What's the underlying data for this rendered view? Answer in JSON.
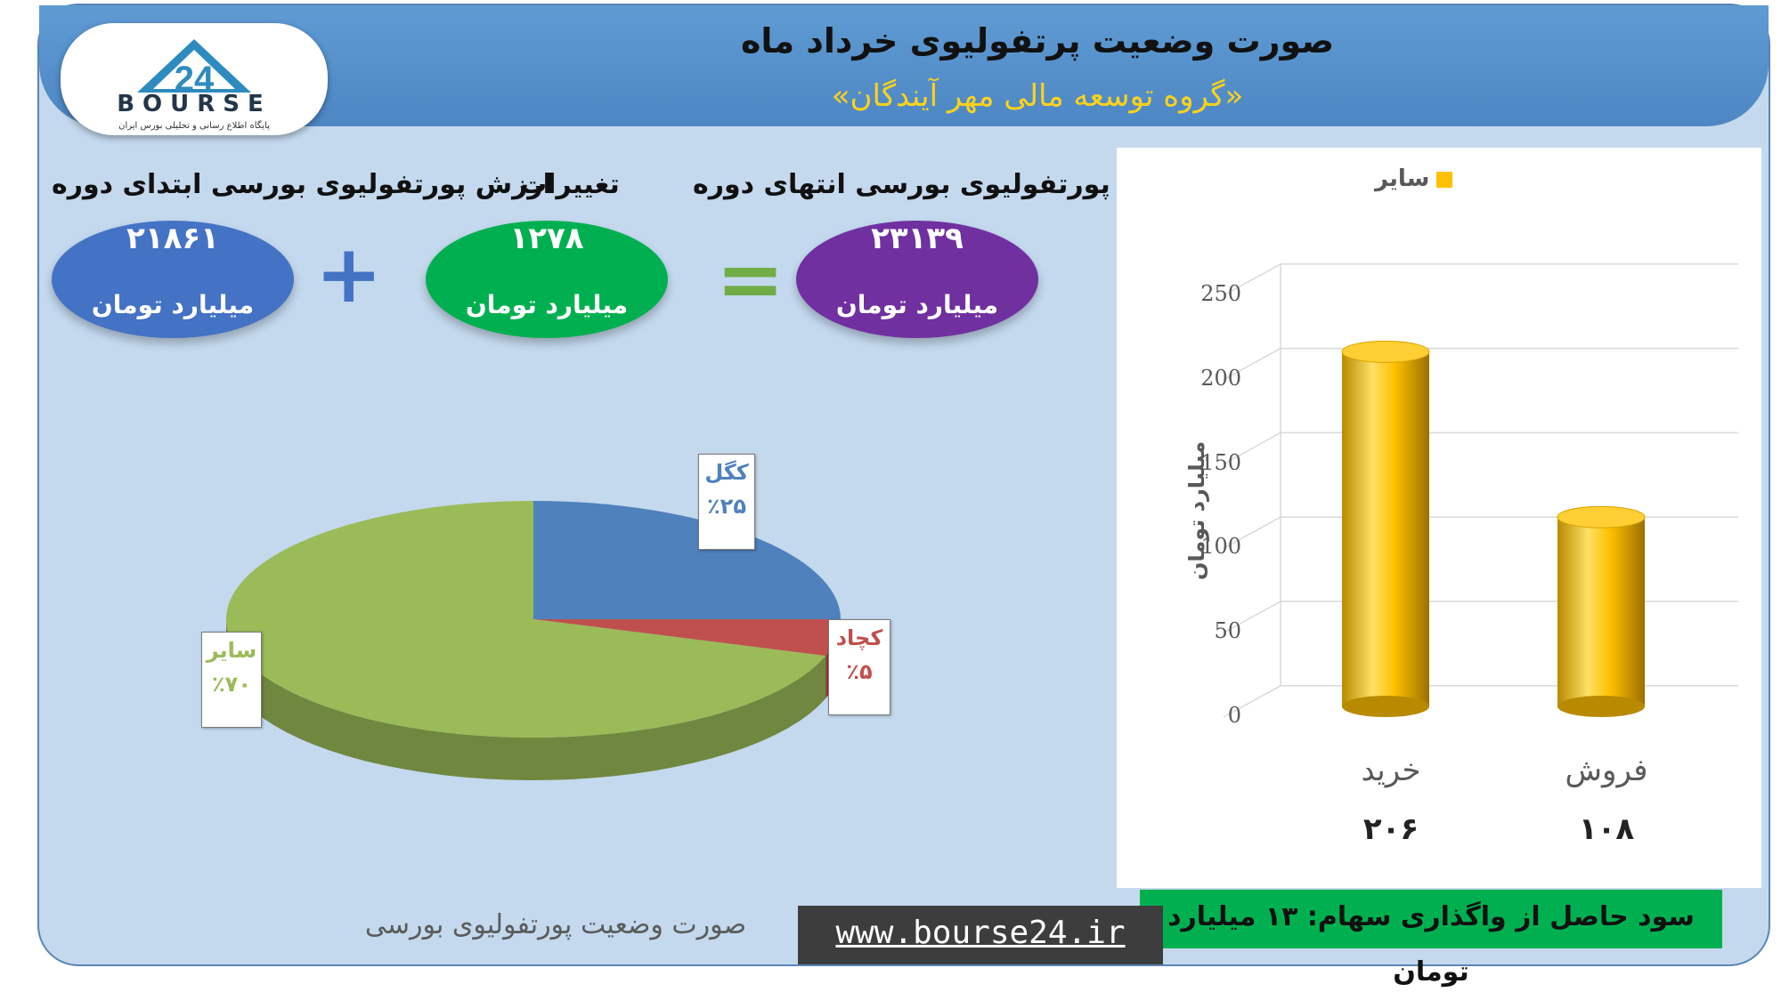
{
  "header": {
    "title": "صورت وضعیت پرتفولیوی خرداد ماه",
    "subtitle": "«گروه توسعه مالی مهر آیندگان»"
  },
  "logo": {
    "word": "BOURSE",
    "mark": "24",
    "tagline": "پایگاه اطلاع رسانی و تحلیلی بورس ایران"
  },
  "summary": {
    "start": {
      "label": "ارزش پورتفولیوی بورسی ابتدای دوره",
      "value": "۲۱۸۶۱",
      "unit": "میلیارد تومان",
      "color": "#4472c4"
    },
    "change": {
      "label": "تغییرات",
      "value": "۱۲۷۸",
      "unit": "میلیارد تومان",
      "color": "#00b050"
    },
    "end": {
      "label": "ارزش پورتفولیوی بورسی انتهای دوره",
      "value": "۲۳۱۳۹",
      "unit": "میلیارد تومان",
      "color": "#7030a0"
    },
    "plus": "+",
    "equals": "="
  },
  "chart_data": [
    {
      "type": "pie",
      "title": "",
      "slices": [
        {
          "name": "کگل",
          "value": 25,
          "label": "٪۲۵",
          "color": "#4f81bd"
        },
        {
          "name": "کچاد",
          "value": 5,
          "label": "٪۵",
          "color": "#c0504d"
        },
        {
          "name": "سایر",
          "value": 70,
          "label": "٪۷۰",
          "color": "#9bbb59"
        }
      ],
      "caption": "صورت وضعیت پورتفولیوی بورسی"
    },
    {
      "type": "bar",
      "style": "3d-cylinder",
      "categories": [
        "خرید",
        "فروش"
      ],
      "series": [
        {
          "name": "سایر",
          "values": [
            206,
            108
          ],
          "color": "#ffc000"
        }
      ],
      "value_labels": [
        "۲۰۶",
        "۱۰۸"
      ],
      "ylabel": "میلیارد تومان",
      "ylim": [
        0,
        250
      ],
      "yticks": [
        0,
        50,
        100,
        150,
        200,
        250
      ],
      "grid": true,
      "legend": "top"
    }
  ],
  "footer": {
    "profit": "سود حاصل از واگذاری سهام: ۱۳ میلیارد تومان",
    "url": "www.bourse24.ir"
  }
}
